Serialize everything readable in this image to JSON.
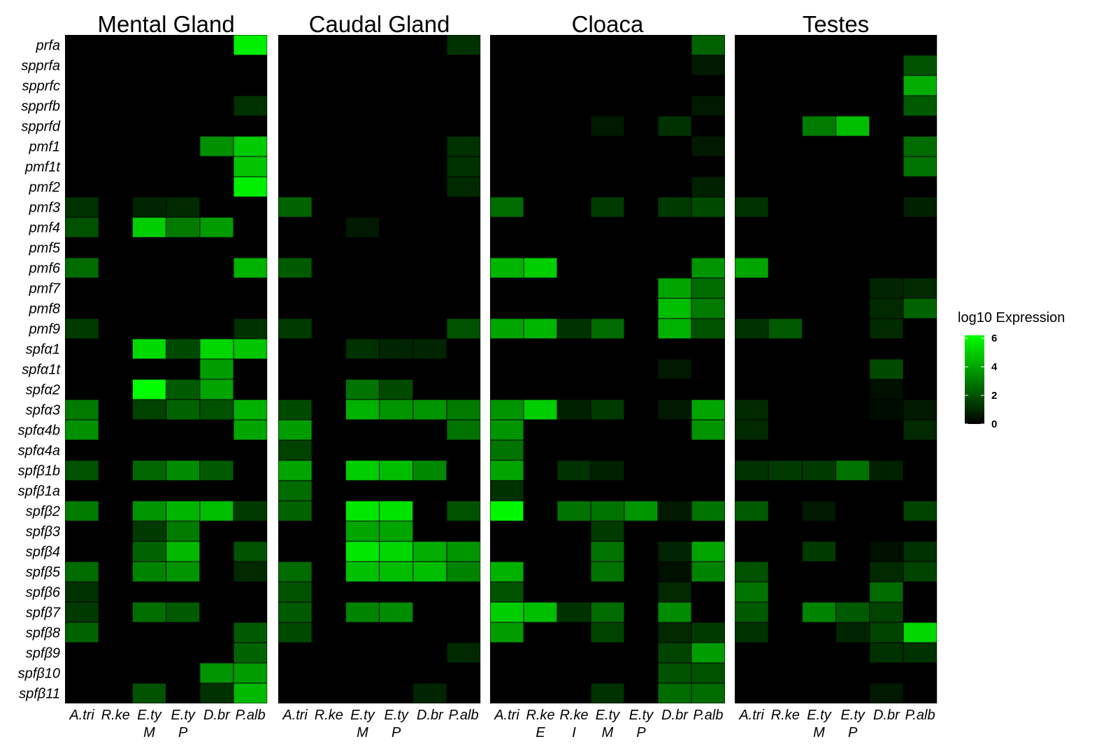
{
  "chart_data": {
    "type": "heatmap",
    "value_scale": "log10",
    "color_low": "#000000",
    "color_high": "#00ff00",
    "value_range": [
      0,
      6.2
    ],
    "legend": {
      "title": "log10 Expression",
      "ticks": [
        "0",
        "2",
        "4",
        "6"
      ],
      "placement": "right"
    },
    "rows": [
      "prfa",
      "spprfa",
      "spprfc",
      "spprfb",
      "spprfd",
      "pmf1",
      "pmf1t",
      "pmf2",
      "pmf3",
      "pmf4",
      "pmf5",
      "pmf6",
      "pmf7",
      "pmf8",
      "pmf9",
      "spfα1",
      "spfα1t",
      "spfα2",
      "spfα3",
      "spfα4b",
      "spfα4a",
      "spfβ1b",
      "spfβ1a",
      "spfβ2",
      "spfβ3",
      "spfβ4",
      "spfβ5",
      "spfβ6",
      "spfβ7",
      "spfβ8",
      "spfβ9",
      "spfβ10",
      "spfβ11"
    ],
    "panels": [
      {
        "title": "Mental Gland",
        "columns": [
          [
            "A.tri"
          ],
          [
            "R.ke"
          ],
          [
            "E.ty",
            "M"
          ],
          [
            "E.ty",
            "P"
          ],
          [
            "D.br"
          ],
          [
            "P.alb"
          ]
        ],
        "values": [
          [
            0,
            0,
            0,
            0,
            0,
            5.8
          ],
          [
            0,
            0,
            0,
            0,
            0,
            0
          ],
          [
            0,
            0,
            0,
            0,
            0,
            0
          ],
          [
            0,
            0,
            0,
            0,
            0,
            1.2
          ],
          [
            0,
            0,
            0,
            0,
            0,
            0
          ],
          [
            0,
            0,
            0,
            0,
            3.5,
            4.9
          ],
          [
            0,
            0,
            0,
            0,
            0,
            4.8
          ],
          [
            0,
            0,
            0,
            0,
            0,
            5.8
          ],
          [
            1.2,
            0,
            0.9,
            1.0,
            0,
            0
          ],
          [
            2.0,
            0,
            5.0,
            3.0,
            3.8,
            0
          ],
          [
            0,
            0,
            0,
            0,
            0,
            0
          ],
          [
            2.6,
            0,
            0,
            0,
            0,
            4.3
          ],
          [
            0,
            0,
            0,
            0,
            0,
            0
          ],
          [
            0,
            0,
            0,
            0,
            0,
            0
          ],
          [
            1.4,
            0,
            0,
            0,
            0,
            1.2
          ],
          [
            0,
            0,
            5.3,
            1.8,
            5.2,
            4.8
          ],
          [
            0,
            0,
            0,
            0,
            3.8,
            0
          ],
          [
            0,
            0,
            6.2,
            2.2,
            4.0,
            0
          ],
          [
            3.0,
            0,
            1.6,
            2.4,
            2.0,
            4.3
          ],
          [
            3.5,
            0,
            0,
            0,
            0,
            4.0
          ],
          [
            0,
            0,
            0,
            0,
            0,
            0
          ],
          [
            2.0,
            0,
            2.5,
            3.4,
            2.2,
            0
          ],
          [
            0,
            0,
            0,
            0,
            0,
            0
          ],
          [
            3.0,
            0,
            3.6,
            4.4,
            4.6,
            1.4
          ],
          [
            0,
            0,
            1.4,
            3.0,
            0,
            0
          ],
          [
            0,
            0,
            2.4,
            4.5,
            0,
            2.0
          ],
          [
            2.6,
            0,
            3.2,
            3.6,
            0,
            1.0
          ],
          [
            1.2,
            0,
            0,
            0,
            0,
            0
          ],
          [
            1.4,
            0,
            2.7,
            2.2,
            0,
            0
          ],
          [
            2.4,
            0,
            0,
            0,
            0,
            2.2
          ],
          [
            0,
            0,
            0,
            0,
            0,
            2.4
          ],
          [
            0,
            0,
            0,
            0,
            3.6,
            3.8
          ],
          [
            0,
            0,
            2.0,
            0,
            1.2,
            4.5
          ]
        ]
      },
      {
        "title": "Caudal Gland",
        "columns": [
          [
            "A.tri"
          ],
          [
            "R.ke"
          ],
          [
            "E.ty",
            "M"
          ],
          [
            "E.ty",
            "P"
          ],
          [
            "D.br"
          ],
          [
            "P.alb"
          ]
        ],
        "values": [
          [
            0,
            0,
            0,
            0,
            0,
            1.2
          ],
          [
            0,
            0,
            0,
            0,
            0,
            0
          ],
          [
            0,
            0,
            0,
            0,
            0,
            0
          ],
          [
            0,
            0,
            0,
            0,
            0,
            0
          ],
          [
            0,
            0,
            0,
            0,
            0,
            0
          ],
          [
            0,
            0,
            0,
            0,
            0,
            1.2
          ],
          [
            0,
            0,
            0,
            0,
            0,
            1.2
          ],
          [
            0,
            0,
            0,
            0,
            0,
            1.0
          ],
          [
            2.4,
            0,
            0,
            0,
            0,
            0
          ],
          [
            0,
            0,
            0.6,
            0,
            0,
            0
          ],
          [
            0,
            0,
            0,
            0,
            0,
            0
          ],
          [
            2.2,
            0,
            0,
            0,
            0,
            0
          ],
          [
            0,
            0,
            0,
            0,
            0,
            0
          ],
          [
            0,
            0,
            0,
            0,
            0,
            0
          ],
          [
            1.4,
            0,
            0,
            0,
            0,
            2.0
          ],
          [
            0,
            0,
            1.2,
            0.9,
            0.9,
            0
          ],
          [
            0,
            0,
            0,
            0,
            0,
            0
          ],
          [
            0,
            0,
            2.8,
            1.8,
            0,
            0
          ],
          [
            1.8,
            0,
            4.3,
            3.6,
            3.6,
            3.0
          ],
          [
            3.8,
            0,
            0,
            0,
            0,
            2.8
          ],
          [
            1.6,
            0,
            0,
            0,
            0,
            0
          ],
          [
            4.0,
            0,
            5.0,
            4.6,
            3.3,
            0
          ],
          [
            2.6,
            0,
            0,
            0,
            0,
            0
          ],
          [
            2.4,
            0,
            5.6,
            5.5,
            0,
            2.0
          ],
          [
            0,
            0,
            4.0,
            4.0,
            0,
            0
          ],
          [
            0,
            0,
            5.6,
            5.2,
            4.2,
            3.6
          ],
          [
            2.6,
            0,
            4.7,
            4.6,
            4.6,
            3.2
          ],
          [
            2.0,
            0,
            0,
            0,
            0,
            0
          ],
          [
            2.2,
            0,
            3.2,
            3.4,
            0,
            0
          ],
          [
            1.8,
            0,
            0,
            0,
            0,
            0
          ],
          [
            0,
            0,
            0,
            0,
            0,
            1.0
          ],
          [
            0,
            0,
            0,
            0,
            0,
            0
          ],
          [
            0,
            0,
            0,
            0,
            0.9,
            0
          ]
        ]
      },
      {
        "title": "Cloaca",
        "columns": [
          [
            "A.tri"
          ],
          [
            "R.ke",
            "E"
          ],
          [
            "R.ke",
            "I"
          ],
          [
            "E.ty",
            "M"
          ],
          [
            "E.ty",
            "P"
          ],
          [
            "D.br"
          ],
          [
            "P.alb"
          ]
        ],
        "values": [
          [
            0,
            0,
            0,
            0,
            0,
            0,
            2.4
          ],
          [
            0,
            0,
            0,
            0,
            0,
            0,
            0.6
          ],
          [
            0,
            0,
            0,
            0,
            0,
            0,
            0
          ],
          [
            0,
            0,
            0,
            0,
            0,
            0,
            0.6
          ],
          [
            0,
            0,
            0,
            0.6,
            0,
            1.2,
            0
          ],
          [
            0,
            0,
            0,
            0,
            0,
            0,
            0.6
          ],
          [
            0,
            0,
            0,
            0,
            0,
            0,
            0
          ],
          [
            0,
            0,
            0,
            0,
            0,
            0,
            0.8
          ],
          [
            2.6,
            0,
            0,
            1.4,
            0,
            1.4,
            1.8
          ],
          [
            0,
            0,
            0,
            0,
            0,
            0,
            0
          ],
          [
            0,
            0,
            0,
            0,
            0,
            0,
            0
          ],
          [
            4.4,
            5.0,
            0,
            0,
            0,
            0,
            3.6
          ],
          [
            0,
            0,
            0,
            0,
            0,
            4.0,
            2.6
          ],
          [
            0,
            0,
            0,
            0,
            0,
            4.6,
            3.0
          ],
          [
            4.0,
            4.4,
            1.2,
            2.6,
            0,
            4.3,
            2.0
          ],
          [
            0,
            0,
            0,
            0,
            0,
            0,
            0
          ],
          [
            0,
            0,
            0,
            0,
            0,
            0.6,
            0
          ],
          [
            0,
            0,
            0,
            0,
            0,
            0,
            0
          ],
          [
            3.6,
            5.0,
            0.8,
            1.4,
            0,
            0.6,
            4.0
          ],
          [
            3.6,
            0,
            0,
            0,
            0,
            0,
            3.6
          ],
          [
            2.8,
            0,
            0,
            0,
            0,
            0,
            0
          ],
          [
            4.0,
            0,
            1.2,
            0.8,
            0,
            0,
            0
          ],
          [
            1.2,
            0,
            0,
            0,
            0,
            0,
            0
          ],
          [
            6.0,
            0,
            2.8,
            2.8,
            3.6,
            0.6,
            2.8
          ],
          [
            0,
            0,
            0,
            1.4,
            0,
            0,
            0
          ],
          [
            0,
            0,
            0,
            2.8,
            0,
            0.9,
            4.0
          ],
          [
            4.3,
            0,
            0,
            2.8,
            0,
            0.4,
            3.2
          ],
          [
            2.0,
            0,
            0,
            0,
            0,
            1.0,
            0
          ],
          [
            5.0,
            4.6,
            1.2,
            2.6,
            0,
            3.4,
            0
          ],
          [
            3.8,
            0,
            0,
            1.6,
            0,
            1.0,
            1.4
          ],
          [
            0,
            0,
            0,
            0,
            0,
            1.6,
            3.8
          ],
          [
            0,
            0,
            0,
            0,
            0,
            2.0,
            2.0
          ],
          [
            0,
            0,
            0,
            1.2,
            0,
            2.6,
            2.6
          ]
        ]
      },
      {
        "title": "Testes",
        "columns": [
          [
            "A.tri"
          ],
          [
            "R.ke"
          ],
          [
            "E.ty",
            "M"
          ],
          [
            "E.ty",
            "P"
          ],
          [
            "D.br"
          ],
          [
            "P.alb"
          ]
        ],
        "values": [
          [
            0,
            0,
            0,
            0,
            0,
            0
          ],
          [
            0,
            0,
            0,
            0,
            0,
            2.0
          ],
          [
            0,
            0,
            0,
            0,
            0,
            4.2
          ],
          [
            0,
            0,
            0,
            0,
            0,
            2.2
          ],
          [
            0,
            0,
            3.0,
            4.6,
            0,
            0
          ],
          [
            0,
            0,
            0,
            0,
            0,
            2.6
          ],
          [
            0,
            0,
            0,
            0,
            0,
            2.8
          ],
          [
            0,
            0,
            0,
            0,
            0,
            0
          ],
          [
            1.2,
            0,
            0,
            0,
            0,
            0.8
          ],
          [
            0,
            0,
            0,
            0,
            0,
            0
          ],
          [
            0,
            0,
            0,
            0,
            0,
            0
          ],
          [
            4.0,
            0,
            0,
            0,
            0,
            0
          ],
          [
            0,
            0,
            0,
            0,
            0.9,
            1.0
          ],
          [
            0,
            0,
            0,
            0,
            1.0,
            2.4
          ],
          [
            1.2,
            2.2,
            0,
            0,
            1.0,
            0
          ],
          [
            0,
            0,
            0,
            0,
            0,
            0
          ],
          [
            0,
            0,
            0,
            0,
            1.8,
            0
          ],
          [
            0,
            0,
            0,
            0,
            0.4,
            0
          ],
          [
            1.0,
            0,
            0,
            0,
            0.3,
            0.6
          ],
          [
            1.0,
            0,
            0,
            0,
            0,
            1.0
          ],
          [
            0,
            0,
            0,
            0,
            0,
            0
          ],
          [
            1.2,
            1.4,
            1.4,
            2.8,
            0.8,
            0
          ],
          [
            0,
            0,
            0,
            0,
            0,
            0
          ],
          [
            2.2,
            0,
            0.6,
            0,
            0,
            1.6
          ],
          [
            0,
            0,
            0,
            0,
            0,
            0
          ],
          [
            0,
            0,
            1.4,
            0,
            0.4,
            1.2
          ],
          [
            2.0,
            0,
            0,
            0,
            1.0,
            1.6
          ],
          [
            2.8,
            0,
            0,
            0,
            2.6,
            0
          ],
          [
            2.2,
            0,
            3.2,
            2.2,
            1.6,
            0
          ],
          [
            1.2,
            0,
            0,
            0.9,
            1.6,
            5.2
          ],
          [
            0,
            0,
            0,
            0,
            1.2,
            1.2
          ],
          [
            0,
            0,
            0,
            0,
            0,
            0
          ],
          [
            0,
            0,
            0,
            0,
            0.6,
            0
          ]
        ]
      }
    ]
  }
}
